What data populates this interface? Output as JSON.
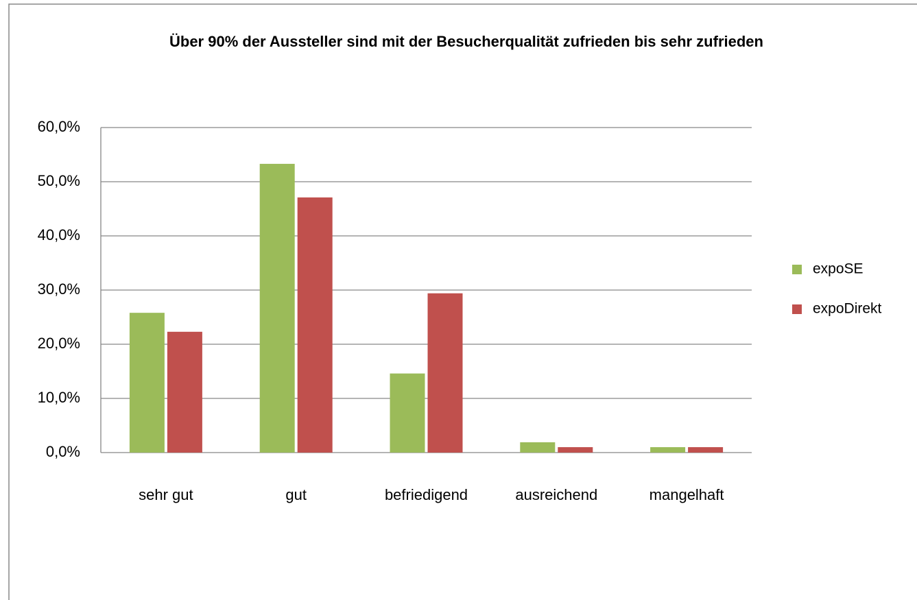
{
  "chart_data": {
    "type": "bar",
    "title": "Über 90% der Aussteller sind mit der Besucherqualität zufrieden bis sehr zufrieden",
    "categories": [
      "sehr gut",
      "gut",
      "befriedigend",
      "ausreichend",
      "mangelhaft"
    ],
    "series": [
      {
        "name": "expoSE",
        "color": "#9bbb59",
        "values": [
          25.8,
          53.3,
          14.6,
          1.9,
          1.0
        ]
      },
      {
        "name": "expoDirekt",
        "color": "#c0504d",
        "values": [
          22.3,
          47.1,
          29.4,
          1.0,
          1.0
        ]
      }
    ],
    "ylim": [
      0,
      60
    ],
    "yticks": [
      {
        "value": 0,
        "label": "0,0%"
      },
      {
        "value": 10,
        "label": "10,0%"
      },
      {
        "value": 20,
        "label": "20,0%"
      },
      {
        "value": 30,
        "label": "30,0%"
      },
      {
        "value": 40,
        "label": "40,0%"
      },
      {
        "value": 50,
        "label": "50,0%"
      },
      {
        "value": 60,
        "label": "60,0%"
      }
    ],
    "grid": true,
    "legend": "right"
  }
}
